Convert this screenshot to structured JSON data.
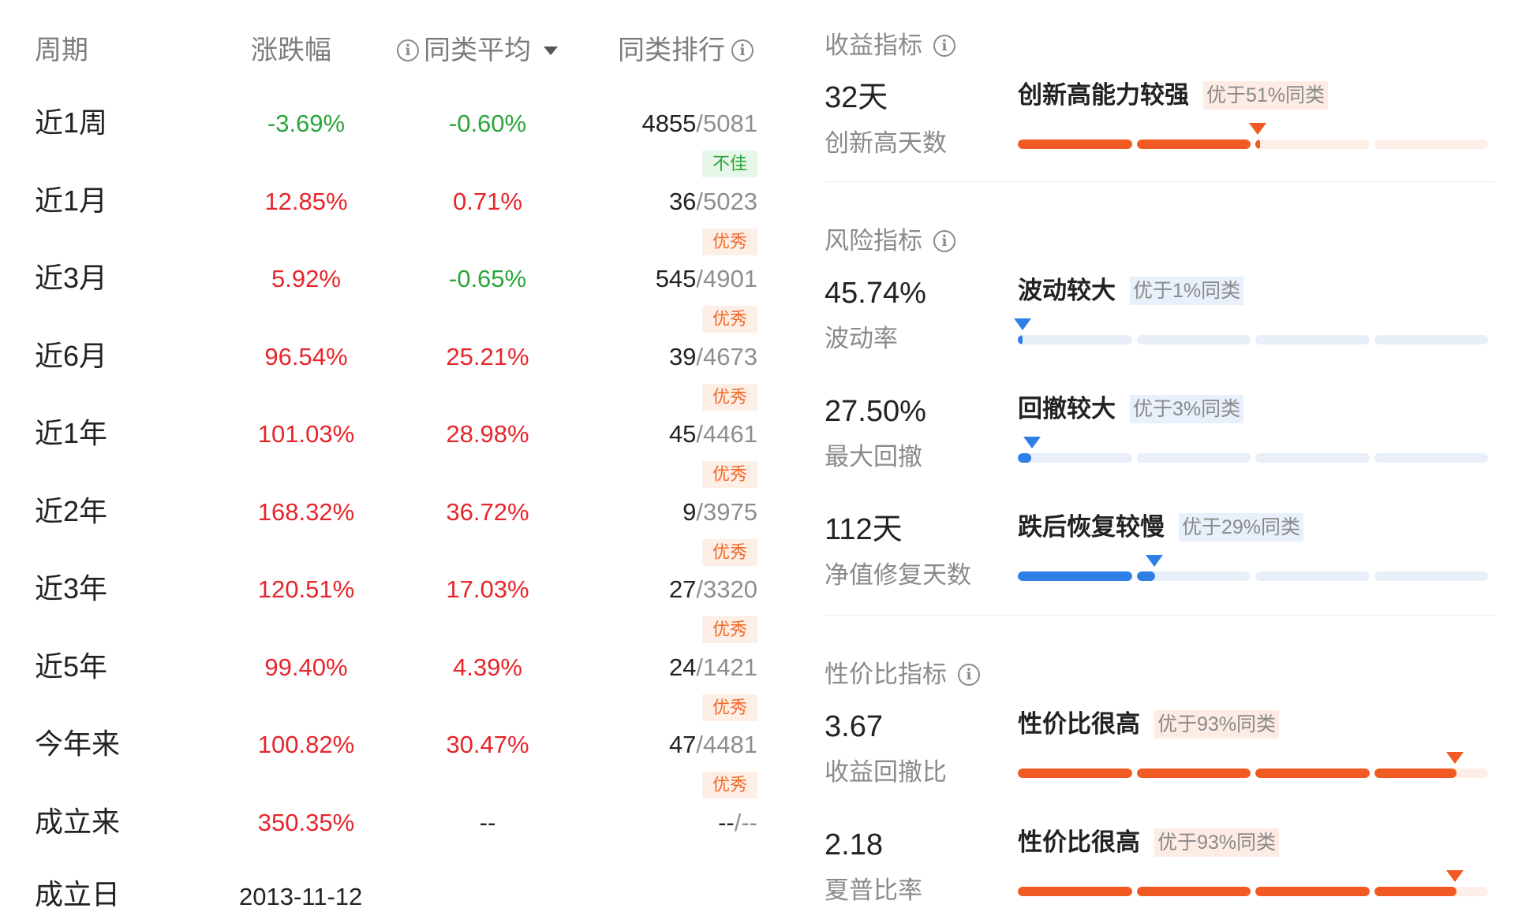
{
  "table": {
    "headers": {
      "period": "周期",
      "change": "涨跌幅",
      "avg_info_icon": "info-icon",
      "avg": "同类平均",
      "avg_dropdown_icon": "caret-down-icon",
      "rank": "同类排行",
      "rank_info_icon": "info-icon"
    },
    "rows": [
      {
        "period": "近1周",
        "change": "-3.69%",
        "change_color": "#2aa53a",
        "avg": "-0.60%",
        "avg_color": "#2aa53a",
        "rank": "4855",
        "total": "/5081",
        "badge": "不佳",
        "badge_type": "bad"
      },
      {
        "period": "近1月",
        "change": "12.85%",
        "change_color": "#e6262b",
        "avg": "0.71%",
        "avg_color": "#e6262b",
        "rank": "36",
        "total": "/5023",
        "badge": "优秀",
        "badge_type": "good"
      },
      {
        "period": "近3月",
        "change": "5.92%",
        "change_color": "#e6262b",
        "avg": "-0.65%",
        "avg_color": "#2aa53a",
        "rank": "545",
        "total": "/4901",
        "badge": "优秀",
        "badge_type": "good"
      },
      {
        "period": "近6月",
        "change": "96.54%",
        "change_color": "#e6262b",
        "avg": "25.21%",
        "avg_color": "#e6262b",
        "rank": "39",
        "total": "/4673",
        "badge": "优秀",
        "badge_type": "good"
      },
      {
        "period": "近1年",
        "change": "101.03%",
        "change_color": "#e6262b",
        "avg": "28.98%",
        "avg_color": "#e6262b",
        "rank": "45",
        "total": "/4461",
        "badge": "优秀",
        "badge_type": "good"
      },
      {
        "period": "近2年",
        "change": "168.32%",
        "change_color": "#e6262b",
        "avg": "36.72%",
        "avg_color": "#e6262b",
        "rank": "9",
        "total": "/3975",
        "badge": "优秀",
        "badge_type": "good"
      },
      {
        "period": "近3年",
        "change": "120.51%",
        "change_color": "#e6262b",
        "avg": "17.03%",
        "avg_color": "#e6262b",
        "rank": "27",
        "total": "/3320",
        "badge": "优秀",
        "badge_type": "good"
      },
      {
        "period": "近5年",
        "change": "99.40%",
        "change_color": "#e6262b",
        "avg": "4.39%",
        "avg_color": "#e6262b",
        "rank": "24",
        "total": "/1421",
        "badge": "优秀",
        "badge_type": "good"
      },
      {
        "period": "今年来",
        "change": "100.82%",
        "change_color": "#e6262b",
        "avg": "30.47%",
        "avg_color": "#e6262b",
        "rank": "47",
        "total": "/4481",
        "badge": "优秀",
        "badge_type": "good"
      },
      {
        "period": "成立来",
        "change": "350.35%",
        "change_color": "#e6262b",
        "avg": "--",
        "avg_color": "#222222",
        "rank": "--",
        "total": "/--",
        "badge": "",
        "badge_type": ""
      }
    ],
    "established": {
      "label": "成立日",
      "date": "2013-11-12"
    }
  },
  "metrics": {
    "return": {
      "title": "收益指标",
      "items": [
        {
          "value": "32天",
          "label": "创新高天数",
          "verdict": "创新高能力较强",
          "sub": "优于51%同类",
          "pct": 0.51,
          "color": "orange"
        }
      ]
    },
    "risk": {
      "title": "风险指标",
      "items": [
        {
          "value": "45.74%",
          "label": "波动率",
          "verdict": "波动较大",
          "sub": "优于1%同类",
          "pct": 0.01,
          "color": "blue"
        },
        {
          "value": "27.50%",
          "label": "最大回撤",
          "verdict": "回撤较大",
          "sub": "优于3%同类",
          "pct": 0.03,
          "color": "blue"
        },
        {
          "value": "112天",
          "label": "净值修复天数",
          "verdict": "跌后恢复较慢",
          "sub": "优于29%同类",
          "pct": 0.29,
          "color": "blue"
        }
      ]
    },
    "value": {
      "title": "性价比指标",
      "items": [
        {
          "value": "3.67",
          "label": "收益回撤比",
          "verdict": "性价比很高",
          "sub": "优于93%同类",
          "pct": 0.93,
          "color": "orange"
        },
        {
          "value": "2.18",
          "label": "夏普比率",
          "verdict": "性价比很高",
          "sub": "优于93%同类",
          "pct": 0.93,
          "color": "orange"
        }
      ]
    }
  },
  "colors": {
    "up": "#e6262b",
    "down": "#2aa53a",
    "orange": "#f15a22",
    "blue": "#2f80e6"
  }
}
